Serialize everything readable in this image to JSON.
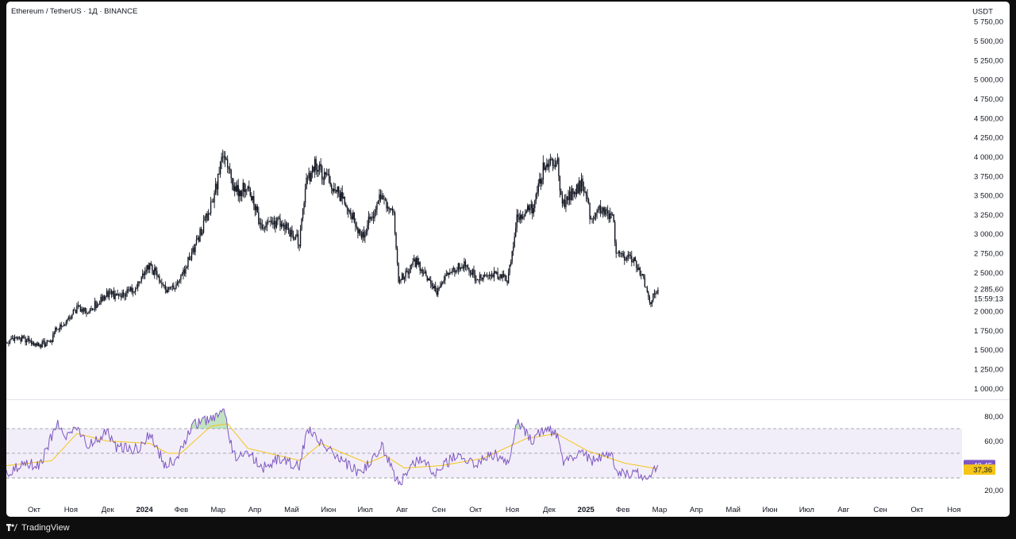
{
  "header": {
    "symbol_title": "Ethereum / TetherUS · 1Д · BINANCE"
  },
  "price_axis": {
    "currency": "USDT",
    "labels": [
      "5 750,00",
      "5 500,00",
      "5 250,00",
      "5 000,00",
      "4 750,00",
      "4 500,00",
      "4 250,00",
      "4 000,00",
      "3 750,00",
      "3 500,00",
      "3 250,00",
      "3 000,00",
      "2 750,00",
      "2 500,00",
      "2 000,00",
      "1 750,00",
      "1 500,00",
      "1 250,00",
      "1 000,00"
    ],
    "current_price": "2 285,60",
    "countdown": "15:59:13"
  },
  "rsi_axis": {
    "labels": [
      "80,00",
      "60,00",
      "20,00"
    ],
    "rsi_value": "40,45",
    "ma_value": "37,36",
    "rsi_color": "#7e57c2",
    "ma_color": "#f5c518"
  },
  "time_axis": {
    "labels": [
      "Окт",
      "Ноя",
      "Дек",
      "2024",
      "Фев",
      "Мар",
      "Апр",
      "Май",
      "Июн",
      "Июл",
      "Авг",
      "Сен",
      "Окт",
      "Ноя",
      "Дек",
      "2025",
      "Фев",
      "Мар",
      "Апр",
      "Май",
      "Июн",
      "Июл",
      "Авг",
      "Сен",
      "Окт",
      "Ноя"
    ],
    "bold": [
      "2024",
      "2025"
    ]
  },
  "footer": {
    "brand": "TradingView"
  },
  "chart_data": [
    {
      "type": "candlestick",
      "title": "Ethereum / TetherUS · 1Д · BINANCE",
      "ylabel": "USDT",
      "ylim": [
        1000,
        5750
      ],
      "x_start": "2023-09-12",
      "x_end": "2025-03-10",
      "anchors": [
        [
          "2023-09-12",
          1600
        ],
        [
          "2023-09-25",
          1640
        ],
        [
          "2023-10-10",
          1560
        ],
        [
          "2023-10-20",
          1620
        ],
        [
          "2023-10-24",
          1790
        ],
        [
          "2023-11-01",
          1830
        ],
        [
          "2023-11-10",
          2040
        ],
        [
          "2023-11-20",
          2000
        ],
        [
          "2023-12-05",
          2230
        ],
        [
          "2023-12-12",
          2200
        ],
        [
          "2023-12-20",
          2230
        ],
        [
          "2024-01-01",
          2350
        ],
        [
          "2024-01-10",
          2600
        ],
        [
          "2024-01-22",
          2300
        ],
        [
          "2024-02-01",
          2300
        ],
        [
          "2024-02-15",
          2790
        ],
        [
          "2024-03-01",
          3350
        ],
        [
          "2024-03-12",
          4050
        ],
        [
          "2024-03-20",
          3550
        ],
        [
          "2024-04-01",
          3600
        ],
        [
          "2024-04-13",
          3050
        ],
        [
          "2024-04-25",
          3150
        ],
        [
          "2024-05-05",
          3050
        ],
        [
          "2024-05-14",
          2900
        ],
        [
          "2024-05-20",
          3650
        ],
        [
          "2024-05-27",
          3900
        ],
        [
          "2024-06-10",
          3650
        ],
        [
          "2024-06-24",
          3350
        ],
        [
          "2024-07-05",
          2950
        ],
        [
          "2024-07-14",
          3250
        ],
        [
          "2024-07-22",
          3500
        ],
        [
          "2024-08-01",
          3200
        ],
        [
          "2024-08-05",
          2400
        ],
        [
          "2024-08-20",
          2650
        ],
        [
          "2024-09-06",
          2250
        ],
        [
          "2024-09-20",
          2550
        ],
        [
          "2024-09-30",
          2600
        ],
        [
          "2024-10-10",
          2400
        ],
        [
          "2024-10-25",
          2500
        ],
        [
          "2024-11-04",
          2400
        ],
        [
          "2024-11-12",
          3200
        ],
        [
          "2024-11-25",
          3350
        ],
        [
          "2024-12-06",
          3950
        ],
        [
          "2024-12-16",
          3900
        ],
        [
          "2024-12-20",
          3400
        ],
        [
          "2025-01-06",
          3650
        ],
        [
          "2025-01-13",
          3200
        ],
        [
          "2025-01-20",
          3300
        ],
        [
          "2025-01-31",
          3250
        ],
        [
          "2025-02-03",
          2750
        ],
        [
          "2025-02-15",
          2700
        ],
        [
          "2025-02-24",
          2500
        ],
        [
          "2025-03-03",
          2100
        ],
        [
          "2025-03-10",
          2280
        ]
      ]
    },
    {
      "type": "line",
      "name": "RSI",
      "ylim": [
        20,
        80
      ],
      "bands": [
        30,
        50,
        70
      ],
      "x_start": "2023-09-12",
      "x_end": "2025-03-10",
      "rsi_anchors": [
        [
          "2023-09-12",
          32
        ],
        [
          "2023-09-25",
          42
        ],
        [
          "2023-10-10",
          40
        ],
        [
          "2023-10-24",
          74
        ],
        [
          "2023-11-01",
          63
        ],
        [
          "2023-11-10",
          73
        ],
        [
          "2023-11-20",
          56
        ],
        [
          "2023-12-05",
          68
        ],
        [
          "2023-12-12",
          55
        ],
        [
          "2024-01-01",
          53
        ],
        [
          "2024-01-10",
          66
        ],
        [
          "2024-01-22",
          42
        ],
        [
          "2024-02-01",
          45
        ],
        [
          "2024-02-15",
          73
        ],
        [
          "2024-03-01",
          78
        ],
        [
          "2024-03-12",
          85
        ],
        [
          "2024-03-20",
          48
        ],
        [
          "2024-04-01",
          50
        ],
        [
          "2024-04-13",
          38
        ],
        [
          "2024-04-25",
          45
        ],
        [
          "2024-05-14",
          40
        ],
        [
          "2024-05-21",
          69
        ],
        [
          "2024-06-10",
          52
        ],
        [
          "2024-06-24",
          40
        ],
        [
          "2024-07-05",
          33
        ],
        [
          "2024-07-22",
          57
        ],
        [
          "2024-08-05",
          25
        ],
        [
          "2024-08-20",
          45
        ],
        [
          "2024-09-06",
          35
        ],
        [
          "2024-09-20",
          47
        ],
        [
          "2024-09-30",
          45
        ],
        [
          "2024-10-10",
          42
        ],
        [
          "2024-10-25",
          50
        ],
        [
          "2024-11-04",
          41
        ],
        [
          "2024-11-12",
          75
        ],
        [
          "2024-11-25",
          60
        ],
        [
          "2024-12-06",
          72
        ],
        [
          "2024-12-16",
          64
        ],
        [
          "2024-12-20",
          44
        ],
        [
          "2025-01-06",
          52
        ],
        [
          "2025-01-13",
          44
        ],
        [
          "2025-01-31",
          48
        ],
        [
          "2025-02-03",
          34
        ],
        [
          "2025-02-24",
          33
        ],
        [
          "2025-03-03",
          29
        ],
        [
          "2025-03-10",
          40.45
        ]
      ],
      "ma_anchors": [
        [
          "2023-09-12",
          40
        ],
        [
          "2023-10-20",
          44
        ],
        [
          "2023-11-10",
          66
        ],
        [
          "2023-12-05",
          60
        ],
        [
          "2024-01-10",
          58
        ],
        [
          "2024-01-25",
          50
        ],
        [
          "2024-02-05",
          50
        ],
        [
          "2024-03-01",
          72
        ],
        [
          "2024-03-15",
          74
        ],
        [
          "2024-04-01",
          54
        ],
        [
          "2024-05-15",
          44
        ],
        [
          "2024-06-01",
          58
        ],
        [
          "2024-06-20",
          50
        ],
        [
          "2024-07-10",
          42
        ],
        [
          "2024-07-25",
          48
        ],
        [
          "2024-08-10",
          38
        ],
        [
          "2024-09-10",
          40
        ],
        [
          "2024-10-15",
          46
        ],
        [
          "2024-11-20",
          62
        ],
        [
          "2024-12-15",
          66
        ],
        [
          "2025-01-10",
          52
        ],
        [
          "2025-02-10",
          42
        ],
        [
          "2025-03-10",
          37.36
        ]
      ]
    }
  ]
}
